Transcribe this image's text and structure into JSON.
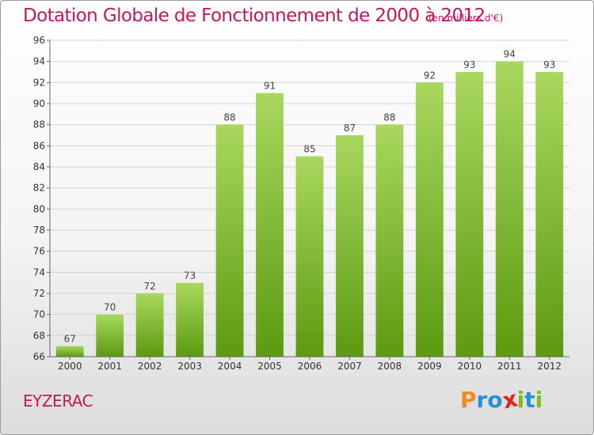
{
  "chart_data": {
    "type": "bar",
    "title": "Dotation Globale de Fonctionnement de 2000 à 2012",
    "subtitle": "(en milliers d'€)",
    "categories": [
      "2000",
      "2001",
      "2002",
      "2003",
      "2004",
      "2005",
      "2006",
      "2007",
      "2008",
      "2009",
      "2010",
      "2011",
      "2012"
    ],
    "values": [
      67,
      70,
      72,
      73,
      88,
      91,
      85,
      87,
      88,
      92,
      93,
      94,
      93
    ],
    "ylim": [
      66,
      96
    ],
    "yticks": [
      66,
      68,
      70,
      72,
      74,
      76,
      78,
      80,
      82,
      84,
      86,
      88,
      90,
      92,
      94,
      96
    ],
    "grid": true,
    "colors": {
      "bar_light": "#a8d85e",
      "bar_dark": "#5c9a10",
      "title": "#c2185b"
    }
  },
  "footer": {
    "commune": "EYZERAC",
    "logo_letters": [
      {
        "char": "P",
        "color": "#f08a1c"
      },
      {
        "char": "r",
        "color": "#2a8fd6"
      },
      {
        "char": "o",
        "color": "#2a8fd6"
      },
      {
        "char": "x",
        "color": "#e2231a"
      },
      {
        "char": "i",
        "color": "#7dbb1f"
      },
      {
        "char": "t",
        "color": "#2a8fd6"
      },
      {
        "char": "i",
        "color": "#7dbb1f"
      }
    ]
  }
}
